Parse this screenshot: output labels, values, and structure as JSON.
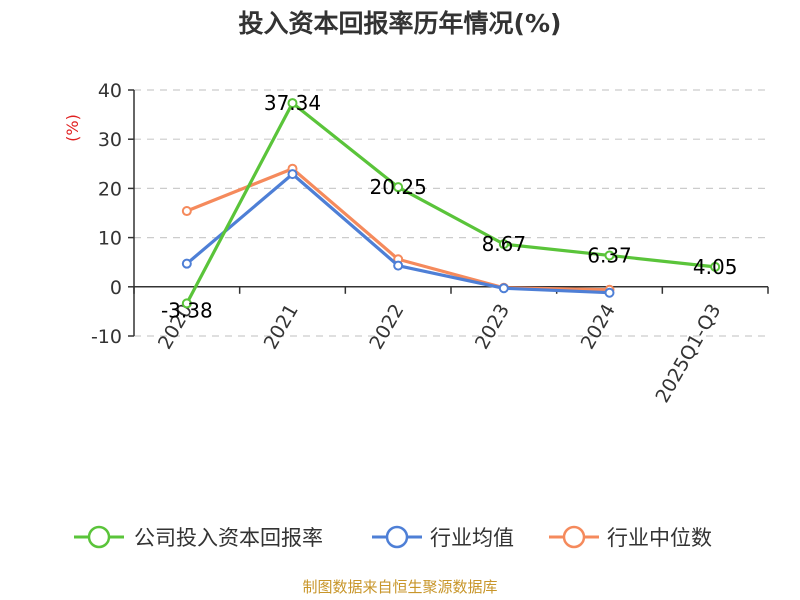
{
  "chart_data": {
    "type": "line",
    "title": "投入资本回报率历年情况(%)",
    "ylabel": "(%)",
    "categories": [
      "2020",
      "2021",
      "2022",
      "2023",
      "2024",
      "2025Q1-Q3"
    ],
    "ylim": [
      -10,
      40
    ],
    "yticks": [
      -10,
      0,
      10,
      20,
      30,
      40
    ],
    "grid": true,
    "legend_position": "bottom",
    "series": [
      {
        "name": "公司投入资本回报率",
        "color": "#5ac43a",
        "values": [
          -3.38,
          37.34,
          20.25,
          8.67,
          6.37,
          4.05
        ],
        "show_labels": true
      },
      {
        "name": "行业均值",
        "color": "#4e7fd6",
        "values": [
          4.7,
          22.9,
          4.3,
          -0.3,
          -1.2,
          null
        ],
        "show_labels": false
      },
      {
        "name": "行业中位数",
        "color": "#f58a5c",
        "values": [
          15.4,
          24.0,
          5.6,
          -0.2,
          -0.6,
          null
        ],
        "show_labels": false
      }
    ],
    "data_labels": [
      "-3.38",
      "37.34",
      "20.25",
      "8.67",
      "6.37",
      "4.05"
    ]
  },
  "source": "制图数据来自恒生聚源数据库"
}
